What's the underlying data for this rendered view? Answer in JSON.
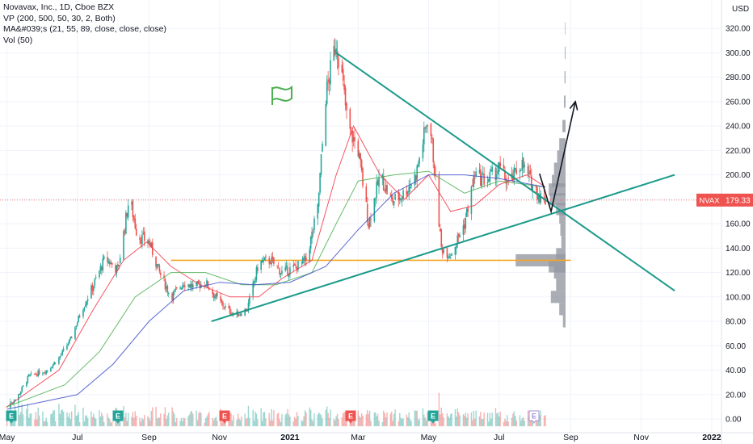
{
  "chart_data": {
    "type": "candlestick",
    "legend": [
      "Novavax, Inc., 1D, Cboe BZX",
      "VP (200, 500, 50, 30, 2, Both)",
      "MA&#039;s (21, 55, 89, close, close, close)",
      "Vol (50)"
    ],
    "currency": "USD",
    "y_ticks": [
      "320.00",
      "300.00",
      "280.00",
      "260.00",
      "240.00",
      "220.00",
      "200.00",
      "180.00",
      "160.00",
      "140.00",
      "120.00",
      "100.00",
      "80.00",
      "60.00",
      "40.00",
      "20.00",
      "0.00"
    ],
    "y_tick_values": [
      320,
      300,
      280,
      260,
      240,
      220,
      200,
      180,
      160,
      140,
      120,
      100,
      80,
      60,
      40,
      20,
      0
    ],
    "ylim": [
      -5,
      333
    ],
    "x_ticks": [
      {
        "label": "May",
        "bold": false
      },
      {
        "label": "Jul",
        "bold": false
      },
      {
        "label": "Sep",
        "bold": false
      },
      {
        "label": "Nov",
        "bold": false
      },
      {
        "label": "2021",
        "bold": true
      },
      {
        "label": "Mar",
        "bold": false
      },
      {
        "label": "May",
        "bold": false
      },
      {
        "label": "Jul",
        "bold": false
      },
      {
        "label": "Sep",
        "bold": false
      },
      {
        "label": "Nov",
        "bold": false
      },
      {
        "label": "2022",
        "bold": true
      }
    ],
    "last_price": {
      "symbol": "NVAX",
      "value": "179.33"
    },
    "price_path": [
      [
        "2020-05-01",
        10
      ],
      [
        "2020-05-10",
        18
      ],
      [
        "2020-05-20",
        35
      ],
      [
        "2020-06-05",
        40
      ],
      [
        "2020-06-15",
        50
      ],
      [
        "2020-06-25",
        65
      ],
      [
        "2020-07-05",
        90
      ],
      [
        "2020-07-15",
        110
      ],
      [
        "2020-07-25",
        132
      ],
      [
        "2020-08-05",
        122
      ],
      [
        "2020-08-15",
        182
      ],
      [
        "2020-08-22",
        150
      ],
      [
        "2020-09-01",
        145
      ],
      [
        "2020-09-10",
        120
      ],
      [
        "2020-09-20",
        100
      ],
      [
        "2020-10-01",
        112
      ],
      [
        "2020-10-10",
        108
      ],
      [
        "2020-10-20",
        112
      ],
      [
        "2020-10-27",
        102
      ],
      [
        "2020-11-05",
        92
      ],
      [
        "2020-11-15",
        85
      ],
      [
        "2020-11-25",
        90
      ],
      [
        "2020-12-05",
        128
      ],
      [
        "2020-12-15",
        130
      ],
      [
        "2020-12-25",
        120
      ],
      [
        "2021-01-05",
        124
      ],
      [
        "2021-01-15",
        130
      ],
      [
        "2021-01-25",
        172
      ],
      [
        "2021-02-01",
        265
      ],
      [
        "2021-02-10",
        310
      ],
      [
        "2021-02-15",
        280
      ],
      [
        "2021-02-20",
        240
      ],
      [
        "2021-03-01",
        220
      ],
      [
        "2021-03-10",
        160
      ],
      [
        "2021-03-20",
        200
      ],
      [
        "2021-03-30",
        178
      ],
      [
        "2021-04-10",
        185
      ],
      [
        "2021-04-20",
        200
      ],
      [
        "2021-05-01",
        250
      ],
      [
        "2021-05-05",
        215
      ],
      [
        "2021-05-12",
        140
      ],
      [
        "2021-05-20",
        135
      ],
      [
        "2021-06-01",
        160
      ],
      [
        "2021-06-10",
        200
      ],
      [
        "2021-06-20",
        195
      ],
      [
        "2021-07-01",
        205
      ],
      [
        "2021-07-10",
        192
      ],
      [
        "2021-07-20",
        210
      ],
      [
        "2021-07-28",
        195
      ],
      [
        "2021-08-05",
        183
      ],
      [
        "2021-08-10",
        179
      ]
    ],
    "moving_averages": [
      {
        "name": "MA21",
        "color": "#f23645",
        "points": [
          [
            "2020-05-01",
            10
          ],
          [
            "2020-06-15",
            40
          ],
          [
            "2020-07-15",
            90
          ],
          [
            "2020-08-10",
            130
          ],
          [
            "2020-08-30",
            145
          ],
          [
            "2020-09-20",
            125
          ],
          [
            "2020-10-15",
            110
          ],
          [
            "2020-11-10",
            100
          ],
          [
            "2020-12-05",
            100
          ],
          [
            "2020-12-25",
            115
          ],
          [
            "2021-01-20",
            130
          ],
          [
            "2021-02-10",
            200
          ],
          [
            "2021-02-25",
            240
          ],
          [
            "2021-03-20",
            200
          ],
          [
            "2021-04-10",
            180
          ],
          [
            "2021-05-01",
            200
          ],
          [
            "2021-05-20",
            170
          ],
          [
            "2021-06-10",
            175
          ],
          [
            "2021-07-01",
            192
          ],
          [
            "2021-07-25",
            200
          ],
          [
            "2021-08-10",
            190
          ]
        ]
      },
      {
        "name": "MA55",
        "color": "#4caf50",
        "points": [
          [
            "2020-05-01",
            10
          ],
          [
            "2020-06-20",
            28
          ],
          [
            "2020-07-20",
            55
          ],
          [
            "2020-08-20",
            100
          ],
          [
            "2020-09-20",
            120
          ],
          [
            "2020-10-20",
            120
          ],
          [
            "2020-11-20",
            110
          ],
          [
            "2020-12-20",
            110
          ],
          [
            "2021-01-20",
            120
          ],
          [
            "2021-02-10",
            160
          ],
          [
            "2021-03-01",
            195
          ],
          [
            "2021-04-01",
            200
          ],
          [
            "2021-05-01",
            203
          ],
          [
            "2021-06-01",
            185
          ],
          [
            "2021-07-01",
            195
          ],
          [
            "2021-08-10",
            190
          ]
        ]
      },
      {
        "name": "MA89",
        "color": "#3f4fc9",
        "points": [
          [
            "2020-05-01",
            8
          ],
          [
            "2020-07-01",
            20
          ],
          [
            "2020-08-01",
            45
          ],
          [
            "2020-09-01",
            80
          ],
          [
            "2020-10-01",
            105
          ],
          [
            "2020-11-01",
            112
          ],
          [
            "2020-12-01",
            110
          ],
          [
            "2021-01-01",
            112
          ],
          [
            "2021-02-01",
            125
          ],
          [
            "2021-03-01",
            155
          ],
          [
            "2021-04-01",
            185
          ],
          [
            "2021-05-01",
            200
          ],
          [
            "2021-06-01",
            200
          ],
          [
            "2021-07-01",
            197
          ],
          [
            "2021-08-10",
            190
          ]
        ]
      }
    ],
    "volume_profile": [
      {
        "price": 80,
        "size": 0.05
      },
      {
        "price": 90,
        "size": 0.12
      },
      {
        "price": 100,
        "size": 0.28
      },
      {
        "price": 110,
        "size": 0.18
      },
      {
        "price": 120,
        "size": 0.22
      },
      {
        "price": 125,
        "size": 0.32
      },
      {
        "price": 130,
        "size": 0.95
      },
      {
        "price": 135,
        "size": 0.18
      },
      {
        "price": 145,
        "size": 0.08
      },
      {
        "price": 155,
        "size": 0.1
      },
      {
        "price": 165,
        "size": 0.12
      },
      {
        "price": 172,
        "size": 0.18
      },
      {
        "price": 180,
        "size": 0.3
      },
      {
        "price": 188,
        "size": 0.32
      },
      {
        "price": 195,
        "size": 0.26
      },
      {
        "price": 205,
        "size": 0.22
      },
      {
        "price": 215,
        "size": 0.16
      },
      {
        "price": 225,
        "size": 0.12
      },
      {
        "price": 240,
        "size": 0.06
      },
      {
        "price": 260,
        "size": 0.03
      },
      {
        "price": 280,
        "size": 0.02
      },
      {
        "price": 300,
        "size": 0.015
      },
      {
        "price": 320,
        "size": 0.01
      }
    ],
    "trendlines": [
      {
        "name": "descending-resistance",
        "color": "#1a9a8a",
        "from": [
          "2021-02-10",
          300
        ],
        "to": [
          "2021-11-30",
          105
        ]
      },
      {
        "name": "ascending-support",
        "color": "#1a9a8a",
        "from": [
          "2020-10-25",
          80
        ],
        "to": [
          "2021-11-30",
          200
        ]
      },
      {
        "name": "horizontal-level",
        "color": "#f5a623",
        "from": [
          "2020-09-20",
          130
        ],
        "to": [
          "2021-09-01",
          130
        ]
      }
    ],
    "projection": [
      [
        "2021-08-05",
        201
      ],
      [
        "2021-08-15",
        170
      ],
      [
        "2021-09-05",
        260
      ]
    ],
    "earnings_markers": [
      "E",
      "E",
      "E",
      "E",
      "E",
      "E"
    ],
    "flag_marker": "flag"
  }
}
